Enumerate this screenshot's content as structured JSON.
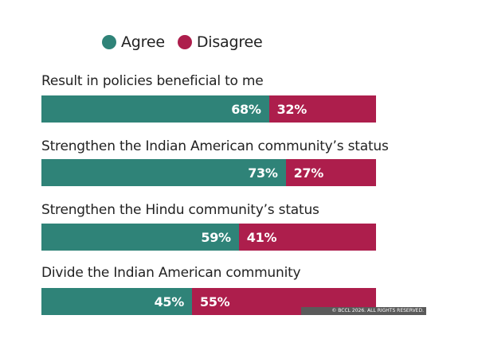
{
  "colors": {
    "agree": "#2f8378",
    "disagree": "#ad1e4c"
  },
  "legend": {
    "agree_label": "Agree",
    "disagree_label": "Disagree"
  },
  "credit_text": "© BCCL 2026. ALL RIGHTS RESERVED.",
  "chart_data": {
    "type": "bar",
    "stacked": true,
    "orientation": "horizontal",
    "categories": [
      "Result in policies beneficial to me",
      "Strengthen the Indian American community’s status",
      "Strengthen the Hindu community’s status",
      "Divide the Indian American community"
    ],
    "series": [
      {
        "name": "Agree",
        "values": [
          68,
          73,
          59,
          45
        ],
        "labels": [
          "68%",
          "73%",
          "59%",
          "45%"
        ]
      },
      {
        "name": "Disagree",
        "values": [
          32,
          27,
          41,
          55
        ],
        "labels": [
          "32%",
          "27%",
          "41%",
          "55%"
        ]
      }
    ],
    "xlim": [
      0,
      100
    ],
    "legend_position": "top-left",
    "grid": false
  }
}
